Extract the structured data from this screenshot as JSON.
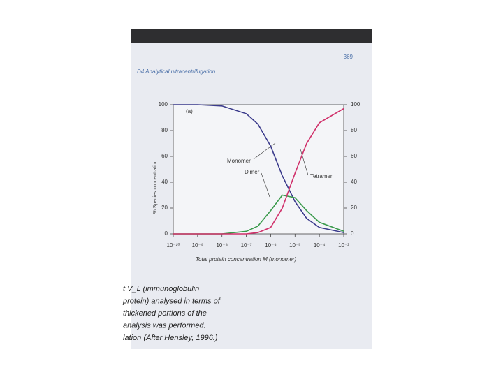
{
  "header": {
    "section": "D4 Analytical ultracentrifugation",
    "page_number": "369"
  },
  "chart_data": {
    "type": "line",
    "panel_label": "(a)",
    "x_label": "Total protein concentration M (monomer)",
    "y_label": "% Species concentration",
    "x": [
      1e-10,
      1e-09,
      1e-08,
      1e-07,
      3e-07,
      1e-06,
      3e-06,
      1e-05,
      3e-05,
      0.0001,
      0.001
    ],
    "series": [
      {
        "name": "Monomer",
        "color": "#3b3b8c",
        "values": [
          100,
          100,
          99,
          93,
          85,
          68,
          45,
          25,
          12,
          5,
          1
        ]
      },
      {
        "name": "Dimer",
        "color": "#3a9a4c",
        "values": [
          0,
          0,
          0,
          2,
          6,
          18,
          30,
          28,
          18,
          9,
          2
        ]
      },
      {
        "name": "Tetramer",
        "color": "#d0306a",
        "values": [
          0,
          0,
          0,
          0,
          1,
          5,
          20,
          47,
          70,
          86,
          97
        ]
      }
    ],
    "xscale": "log",
    "xlim": [
      1e-10,
      0.001
    ],
    "xticks": [
      {
        "value": 1e-10,
        "label": "10⁻¹⁰"
      },
      {
        "value": 1e-09,
        "label": "10⁻⁹"
      },
      {
        "value": 1e-08,
        "label": "10⁻⁸"
      },
      {
        "value": 1e-07,
        "label": "10⁻⁷"
      },
      {
        "value": 1e-06,
        "label": "10⁻⁶"
      },
      {
        "value": 1e-05,
        "label": "10⁻⁵"
      },
      {
        "value": 0.0001,
        "label": "10⁻⁴"
      },
      {
        "value": 0.001,
        "label": "10⁻³"
      }
    ],
    "ylim": [
      0,
      100
    ],
    "yticks": [
      0,
      20,
      40,
      60,
      80,
      100
    ],
    "y2lim": [
      0,
      100
    ],
    "y2ticks": [
      0,
      20,
      40,
      60,
      80,
      100
    ],
    "grid": false
  },
  "caption": [
    "t V_L (immunoglobulin",
    "protein) analysed in terms of",
    "thickened portions of the",
    "analysis was performed.",
    "lation (After Hensley, 1996.)"
  ]
}
